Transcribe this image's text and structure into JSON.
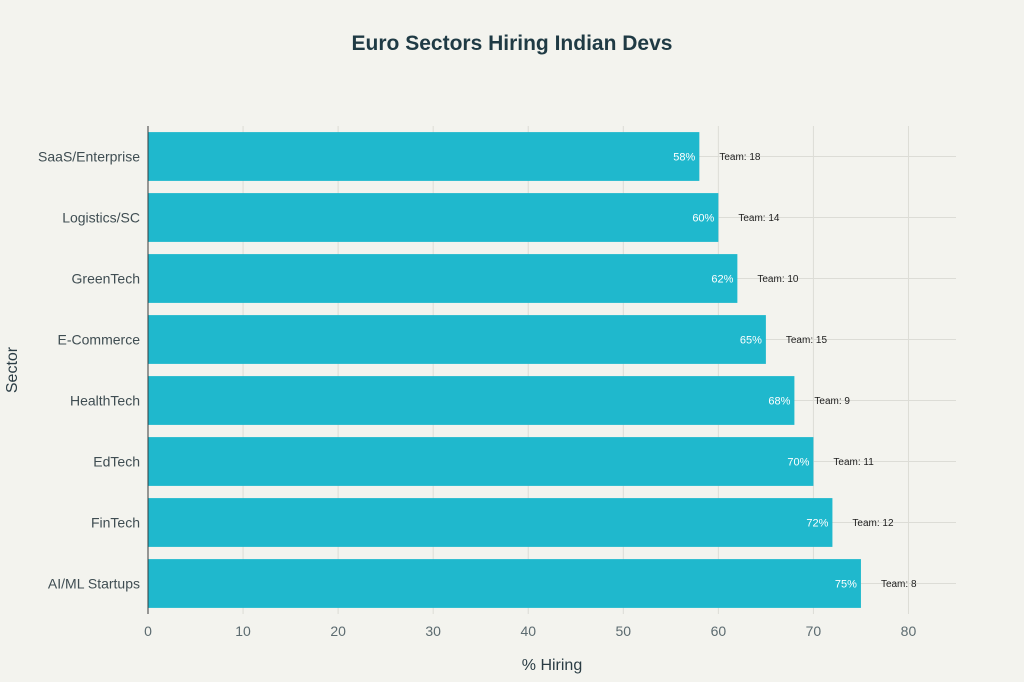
{
  "chart_data": {
    "type": "bar",
    "orientation": "horizontal",
    "title": "Euro Sectors Hiring Indian Devs",
    "xlabel": "% Hiring",
    "ylabel": "Sector",
    "categories": [
      "SaaS/Enterprise",
      "Logistics/SC",
      "GreenTech",
      "E-Commerce",
      "HealthTech",
      "EdTech",
      "FinTech",
      "AI/ML Startups"
    ],
    "values": [
      58,
      60,
      62,
      65,
      68,
      70,
      72,
      75
    ],
    "value_labels": [
      "58%",
      "60%",
      "62%",
      "65%",
      "68%",
      "70%",
      "72%",
      "75%"
    ],
    "annotations": [
      "Team: 18",
      "Team: 14",
      "Team: 10",
      "Team: 15",
      "Team: 9",
      "Team: 11",
      "Team: 12",
      "Team: 8"
    ],
    "xlim": [
      0,
      85
    ],
    "xticks": [
      0,
      10,
      20,
      30,
      40,
      50,
      60,
      70,
      80
    ],
    "grid": true,
    "legend": "none",
    "colors": {
      "bar": "#1fb8cd",
      "background": "#f3f3ee",
      "grid": "#dcdcd6",
      "axis": "#3a3a3a"
    }
  }
}
